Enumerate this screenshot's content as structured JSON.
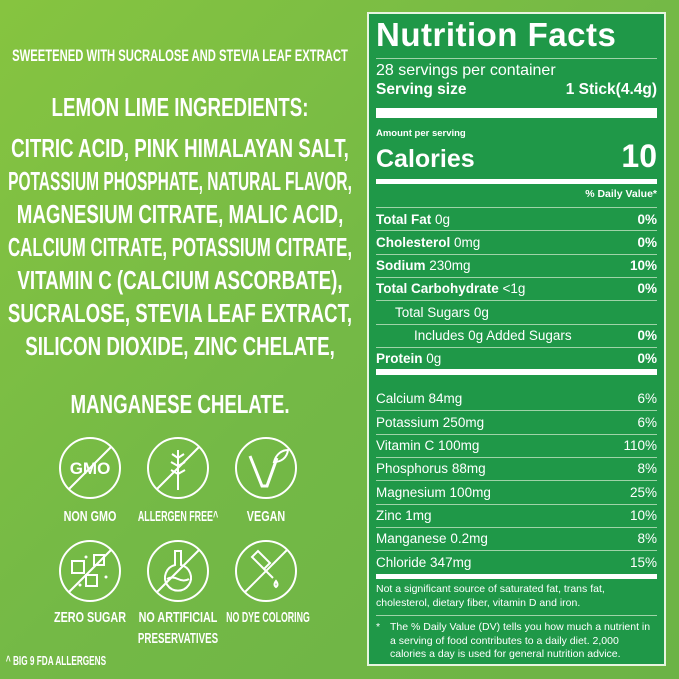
{
  "left": {
    "sweetener": "SWEETENED WITH SUCRALOSE AND STEVIA LEAF EXTRACT",
    "heading": "LEMON LIME INGREDIENTS:",
    "ingredients": [
      "CITRIC ACID, PINK HIMALAYAN SALT,",
      "POTASSIUM PHOSPHATE, NATURAL FLAVOR,",
      "MAGNESIUM CITRATE, MALIC ACID,",
      "CALCIUM CITRATE, POTASSIUM CITRATE,",
      "VITAMIN C (CALCIUM ASCORBATE),",
      "SUCRALOSE, STEVIA LEAF EXTRACT,",
      "SILICON DIOXIDE, ZINC CHELATE,",
      "MANGANESE CHELATE."
    ],
    "badges": [
      {
        "icon": "non-gmo-icon",
        "label": "NON GMO",
        "icon_text": "GMO"
      },
      {
        "icon": "wheat-crossed-icon",
        "label": "ALLERGEN FREE^"
      },
      {
        "icon": "vegan-leaf-icon",
        "label": "VEGAN"
      },
      {
        "icon": "sugar-cubes-crossed-icon",
        "label": "ZERO SUGAR"
      },
      {
        "icon": "flask-crossed-icon",
        "label": "NO ARTIFICIAL",
        "label2": "PRESERVATIVES"
      },
      {
        "icon": "dropper-crossed-icon",
        "label": "NO DYE COLORING"
      }
    ],
    "footnote": "^ BIG 9 FDA ALLERGENS"
  },
  "nutrition": {
    "title": "Nutrition Facts",
    "servings": "28 servings per container",
    "serving_size_label": "Serving size",
    "serving_size": "1 Stick(4.4g)",
    "amount_per_serving": "Amount per serving",
    "calories_label": "Calories",
    "calories": "10",
    "dv_header": "% Daily Value*",
    "rows": [
      {
        "name": "Total Fat",
        "amount": "0g",
        "dv": "0%",
        "bold": true
      },
      {
        "name": "Cholesterol",
        "amount": "0mg",
        "dv": "0%",
        "bold": true
      },
      {
        "name": "Sodium",
        "amount": "230mg",
        "dv": "10%",
        "bold": true
      },
      {
        "name": "Total Carbohydrate",
        "amount": "<1g",
        "dv": "0%",
        "bold": true
      },
      {
        "name": "Total Sugars",
        "amount": "0g",
        "dv": "",
        "indent": 1
      },
      {
        "name": "Includes",
        "amount": "0g Added Sugars",
        "dv": "0%",
        "indent": 2
      },
      {
        "name": "Protein",
        "amount": "0g",
        "dv": "0%",
        "bold": true
      }
    ],
    "micros": [
      {
        "name": "Calcium",
        "amount": "84mg",
        "dv": "6%"
      },
      {
        "name": "Potassium",
        "amount": "250mg",
        "dv": "6%"
      },
      {
        "name": "Vitamin C",
        "amount": "100mg",
        "dv": "110%"
      },
      {
        "name": "Phosphorus",
        "amount": "88mg",
        "dv": "8%"
      },
      {
        "name": "Magnesium",
        "amount": "100mg",
        "dv": "25%"
      },
      {
        "name": "Zinc",
        "amount": "1mg",
        "dv": "10%"
      },
      {
        "name": "Manganese",
        "amount": "0.2mg",
        "dv": "8%"
      },
      {
        "name": "Chloride",
        "amount": "347mg",
        "dv": "15%"
      }
    ],
    "note1": "Not a significant source of saturated fat, trans fat, cholesterol, dietary fiber, vitamin D and iron.",
    "note2_star": "*",
    "note2": "The % Daily Value (DV) tells you how much a nutrient in a serving of food contributes to a daily diet. 2,000 calories a day is used for general nutrition advice."
  },
  "colors": {
    "background": "#78ba44",
    "panel": "#1f9848",
    "text": "#ffffff"
  }
}
